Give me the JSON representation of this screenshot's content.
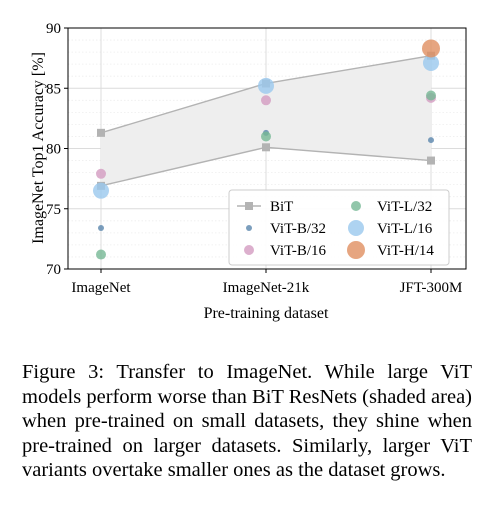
{
  "chart_data": {
    "type": "scatter",
    "xlabel": "Pre-training dataset",
    "ylabel": "ImageNet Top1 Accuracy [%]",
    "categories": [
      "ImageNet",
      "ImageNet-21k",
      "JFT-300M"
    ],
    "ylim": [
      70,
      90
    ],
    "yticks": [
      70,
      75,
      80,
      85,
      90
    ],
    "grid": true,
    "legend_position": "bottom-right",
    "shaded_area": {
      "description": "BiT ResNets range",
      "color": "#eeeeee"
    },
    "bit_range": {
      "upper": [
        81.3,
        85.4,
        87.7
      ],
      "lower": [
        76.9,
        80.1,
        79.0
      ]
    },
    "series": [
      {
        "name": "BiT",
        "marker": "square",
        "color": "#b3b3b3",
        "size": 3,
        "points": [
          [
            0,
            81.3
          ],
          [
            0,
            76.9
          ],
          [
            1,
            85.4
          ],
          [
            1,
            80.1
          ],
          [
            2,
            87.7
          ],
          [
            2,
            79.0
          ]
        ]
      },
      {
        "name": "ViT-B/32",
        "marker": "circle",
        "color": "#5a86ad",
        "size": 3,
        "points": [
          [
            0,
            73.4
          ],
          [
            1,
            81.3
          ],
          [
            2,
            80.7
          ]
        ]
      },
      {
        "name": "ViT-B/16",
        "marker": "circle",
        "color": "#d39bc1",
        "size": 5,
        "points": [
          [
            0,
            77.9
          ],
          [
            1,
            84.0
          ],
          [
            2,
            84.2
          ]
        ]
      },
      {
        "name": "ViT-L/32",
        "marker": "circle",
        "color": "#76b895",
        "size": 5,
        "points": [
          [
            0,
            71.2
          ],
          [
            1,
            81.0
          ],
          [
            2,
            84.4
          ]
        ]
      },
      {
        "name": "ViT-L/16",
        "marker": "circle",
        "color": "#9ac8ee",
        "size": 8,
        "points": [
          [
            0,
            76.5
          ],
          [
            1,
            85.2
          ],
          [
            2,
            87.1
          ]
        ]
      },
      {
        "name": "ViT-H/14",
        "marker": "circle",
        "color": "#e08f60",
        "size": 9,
        "points": [
          [
            2,
            88.3
          ]
        ]
      }
    ],
    "legend_order": [
      "BiT",
      "ViT-B/32",
      "ViT-B/16",
      "ViT-L/32",
      "ViT-L/16",
      "ViT-H/14"
    ]
  },
  "caption": {
    "text": "Figure 3: Transfer to ImageNet. While large ViT models perform worse than BiT ResNets (shaded area) when pre-trained on small datasets, they shine when pre-trained on larger datasets. Similarly, larger ViT variants overtake smaller ones as the dataset grows."
  }
}
